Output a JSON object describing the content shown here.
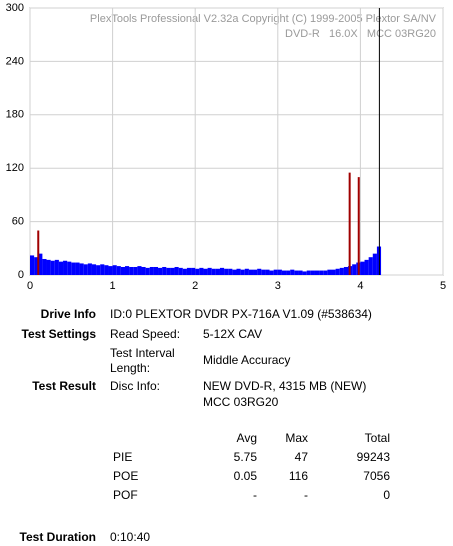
{
  "chart_data": {
    "type": "bar",
    "title": "PlexTools Professional V2.32a Copyright (C) 1999-2005 Plextor SA/NV",
    "subtitle": "DVD-R   16.0X   MCC 03RG20",
    "xlim": [
      0,
      5
    ],
    "xticks": [
      0,
      1,
      2,
      3,
      4,
      5
    ],
    "ylim": [
      0,
      300
    ],
    "yticks": [
      0,
      60,
      120,
      180,
      240,
      300
    ],
    "grid": true,
    "bar_width": 0.05,
    "end_marker": {
      "x": 4.23,
      "color": "#000000"
    },
    "series": [
      {
        "color": "#0000ff",
        "x": [
          0,
          0.05,
          0.1,
          0.15,
          0.2,
          0.25,
          0.3,
          0.35,
          0.4,
          0.45,
          0.5,
          0.55,
          0.6,
          0.65,
          0.7,
          0.75,
          0.8,
          0.85,
          0.9,
          0.95,
          1,
          1.05,
          1.1,
          1.15,
          1.2,
          1.25,
          1.3,
          1.35,
          1.4,
          1.45,
          1.5,
          1.55,
          1.6,
          1.65,
          1.7,
          1.75,
          1.8,
          1.85,
          1.9,
          1.95,
          2,
          2.05,
          2.1,
          2.15,
          2.2,
          2.25,
          2.3,
          2.35,
          2.4,
          2.45,
          2.5,
          2.55,
          2.6,
          2.65,
          2.7,
          2.75,
          2.8,
          2.85,
          2.9,
          2.95,
          3,
          3.05,
          3.1,
          3.15,
          3.2,
          3.25,
          3.3,
          3.35,
          3.4,
          3.45,
          3.5,
          3.55,
          3.6,
          3.65,
          3.7,
          3.75,
          3.8,
          3.85,
          3.9,
          3.95,
          4,
          4.05,
          4.1,
          4.15,
          4.2
        ],
        "values": [
          22,
          20,
          24,
          18,
          17,
          16,
          17,
          15,
          16,
          15,
          14,
          14,
          13,
          12,
          13,
          12,
          11,
          12,
          11,
          10,
          11,
          10,
          9,
          10,
          9,
          9,
          10,
          9,
          8,
          9,
          9,
          8,
          9,
          8,
          8,
          9,
          8,
          7,
          8,
          8,
          7,
          8,
          7,
          8,
          7,
          7,
          8,
          7,
          7,
          6,
          7,
          6,
          7,
          6,
          6,
          7,
          6,
          6,
          5,
          6,
          6,
          5,
          5,
          6,
          5,
          5,
          4,
          5,
          5,
          5,
          5,
          5,
          6,
          6,
          7,
          8,
          9,
          10,
          12,
          14,
          15,
          17,
          20,
          24,
          32
        ]
      },
      {
        "color": "#a00000",
        "x": [
          0.1,
          3.87,
          3.98
        ],
        "values": [
          50,
          115,
          110
        ]
      }
    ]
  },
  "info": {
    "drive_label": "Drive Info",
    "drive_value": "ID:0 PLEXTOR DVDR PX-716A V1.09 (#538634)",
    "settings_label": "Test Settings",
    "speed_label": "Read Speed:",
    "speed_value": "5-12X CAV",
    "interval_label_1": "Test Interval",
    "interval_label_2": "Length:",
    "interval_value": "Middle Accuracy",
    "result_label": "Test Result",
    "disc_label": "Disc Info:",
    "disc_value_1": "NEW DVD-R, 4315 MB (NEW)",
    "disc_value_2": "MCC 03RG20",
    "table": {
      "header": [
        "Avg",
        "Max",
        "Total"
      ],
      "rows": [
        [
          "PIE",
          "5.75",
          "47",
          "99243"
        ],
        [
          "POE",
          "0.05",
          "116",
          "7056"
        ],
        [
          "POF",
          "-",
          "-",
          "0"
        ]
      ]
    },
    "duration_label": "Test Duration",
    "duration_value": "0:10:40"
  }
}
